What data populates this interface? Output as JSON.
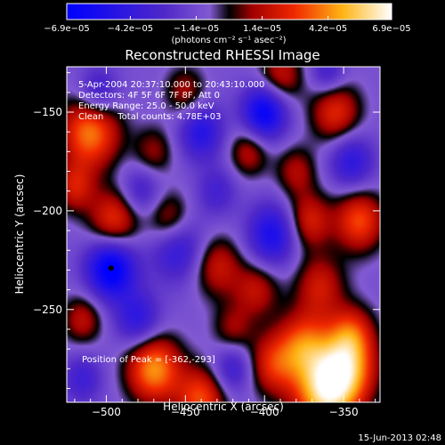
{
  "chart_data": {
    "type": "heatmap",
    "title": "Reconstructed RHESSI Image",
    "xlabel": "Heliocentric X (arcsec)",
    "ylabel": "Heliocentric Y (arcsec)",
    "xlim": [
      -525,
      -327
    ],
    "ylim": [
      -297,
      -127
    ],
    "x_ticks": [
      {
        "value": -500,
        "label": "−500"
      },
      {
        "value": -450,
        "label": "−450"
      },
      {
        "value": -400,
        "label": "−400"
      },
      {
        "value": -350,
        "label": "−350"
      }
    ],
    "y_ticks": [
      {
        "value": -150,
        "label": "−150"
      },
      {
        "value": -200,
        "label": "−200"
      },
      {
        "value": -250,
        "label": "−250"
      }
    ],
    "colorbar": {
      "min": -6.9e-05,
      "max": 6.9e-05,
      "ticks": [
        {
          "value": -6.9e-05,
          "label": "−6.9e−05"
        },
        {
          "value": -4.2e-05,
          "label": "−4.2e−05"
        },
        {
          "value": -1.4e-05,
          "label": "−1.4e−05"
        },
        {
          "value": 1.4e-05,
          "label": "1.4e−05"
        },
        {
          "value": 4.2e-05,
          "label": "4.2e−05"
        },
        {
          "value": 6.9e-05,
          "label": "6.9e−05"
        }
      ],
      "units_label": "(photons cm⁻² s⁻¹ asec⁻²)"
    },
    "annotations": [
      "5-Apr-2004 20:37:10.000 to 20:43:10.000",
      "Detectors: 4F 5F 6F 7F 8F, Att 0",
      "Energy Range: 25.0 - 50.0 keV",
      "Clean     Total counts: 4.78E+03"
    ],
    "peak_label": "Position of Peak = [-362,-293]",
    "peak_position": [
      -362,
      -293
    ],
    "min_marker": [
      -497,
      -229
    ],
    "blobs": [
      {
        "x": -362,
        "y": -293,
        "v": 1.0,
        "s": 14
      },
      {
        "x": -348,
        "y": -280,
        "v": 0.85,
        "s": 13
      },
      {
        "x": -375,
        "y": -268,
        "v": 0.7,
        "s": 12
      },
      {
        "x": -345,
        "y": -262,
        "v": 0.55,
        "s": 10
      },
      {
        "x": -365,
        "y": -238,
        "v": 0.5,
        "s": 11
      },
      {
        "x": -340,
        "y": -205,
        "v": 0.7,
        "s": 11
      },
      {
        "x": -372,
        "y": -205,
        "v": 0.55,
        "s": 10
      },
      {
        "x": -355,
        "y": -150,
        "v": 0.6,
        "s": 11
      },
      {
        "x": -390,
        "y": -132,
        "v": 0.5,
        "s": 10
      },
      {
        "x": -510,
        "y": -160,
        "v": 0.85,
        "s": 13
      },
      {
        "x": -520,
        "y": -188,
        "v": 0.5,
        "s": 9
      },
      {
        "x": -495,
        "y": -205,
        "v": 0.65,
        "s": 11
      },
      {
        "x": -460,
        "y": -205,
        "v": 0.55,
        "s": 10
      },
      {
        "x": -470,
        "y": -280,
        "v": 0.9,
        "s": 12
      },
      {
        "x": -440,
        "y": -295,
        "v": 0.7,
        "s": 11
      },
      {
        "x": -430,
        "y": -228,
        "v": 0.5,
        "s": 11
      },
      {
        "x": -405,
        "y": -240,
        "v": 0.45,
        "s": 10
      },
      {
        "x": -410,
        "y": -170,
        "v": 0.45,
        "s": 9
      },
      {
        "x": -470,
        "y": -170,
        "v": 0.35,
        "s": 9
      },
      {
        "x": -450,
        "y": -140,
        "v": 0.4,
        "s": 9
      },
      {
        "x": -515,
        "y": -255,
        "v": 0.45,
        "s": 9
      },
      {
        "x": -420,
        "y": -260,
        "v": 0.35,
        "s": 9
      },
      {
        "x": -395,
        "y": -278,
        "v": 0.55,
        "s": 11
      },
      {
        "x": -380,
        "y": -180,
        "v": 0.4,
        "s": 9
      },
      {
        "x": -497,
        "y": -229,
        "v": -1.0,
        "s": 11
      },
      {
        "x": -400,
        "y": -150,
        "v": -0.9,
        "s": 10
      },
      {
        "x": -395,
        "y": -212,
        "v": -0.7,
        "s": 11
      },
      {
        "x": -455,
        "y": -218,
        "v": -0.6,
        "s": 12
      },
      {
        "x": -440,
        "y": -160,
        "v": -0.6,
        "s": 10
      },
      {
        "x": -480,
        "y": -255,
        "v": -0.55,
        "s": 10
      },
      {
        "x": -505,
        "y": -140,
        "v": -0.5,
        "s": 9
      },
      {
        "x": -345,
        "y": -175,
        "v": -0.55,
        "s": 10
      },
      {
        "x": -360,
        "y": -130,
        "v": -0.4,
        "s": 8
      },
      {
        "x": -420,
        "y": -280,
        "v": -0.45,
        "s": 9
      },
      {
        "x": -515,
        "y": -285,
        "v": -0.4,
        "s": 9
      },
      {
        "x": -478,
        "y": -190,
        "v": -0.4,
        "s": 9
      },
      {
        "x": -430,
        "y": -190,
        "v": -0.35,
        "s": 9
      }
    ]
  },
  "footer": {
    "timestamp": "15-Jun-2013 02:48"
  }
}
